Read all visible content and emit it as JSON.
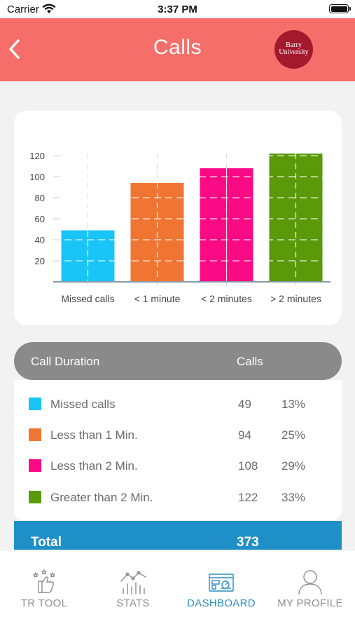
{
  "status_bar": {
    "carrier": "Carrier",
    "time": "3:37 PM"
  },
  "header": {
    "title": "Calls",
    "logo_text": [
      "Barry",
      "University"
    ],
    "background": "#f56e69"
  },
  "chart_data": {
    "type": "bar",
    "categories": [
      "Missed calls",
      "< 1 minute",
      "< 2 minutes",
      "> 2 minutes"
    ],
    "values": [
      49,
      94,
      108,
      122
    ],
    "colors": [
      "#19c4f6",
      "#f07532",
      "#fb0a86",
      "#5a9a0a"
    ],
    "yticks": [
      20,
      40,
      60,
      80,
      100,
      120
    ],
    "ylim": [
      0,
      122
    ],
    "grid": true
  },
  "table": {
    "header": {
      "duration": "Call Duration",
      "calls": "Calls"
    },
    "rows": [
      {
        "label": "Missed calls",
        "count": "49",
        "pct": "13%",
        "color": "#19c4f6"
      },
      {
        "label": "Less than 1 Min.",
        "count": "94",
        "pct": "25%",
        "color": "#f07532"
      },
      {
        "label": "Less than 2 Min.",
        "count": "108",
        "pct": "29%",
        "color": "#fb0a86"
      },
      {
        "label": "Greater than 2 Min.",
        "count": "122",
        "pct": "33%",
        "color": "#5a9a0a"
      }
    ],
    "total": {
      "label": "Total",
      "value": "373"
    }
  },
  "tabs": [
    {
      "label": "TR TOOL",
      "icon": "thumbs-up-stars-icon",
      "active": false
    },
    {
      "label": "STATS",
      "icon": "stats-chart-icon",
      "active": false
    },
    {
      "label": "DASHBOARD",
      "icon": "dashboard-icon",
      "active": true
    },
    {
      "label": "MY PROFILE",
      "icon": "user-profile-icon",
      "active": false
    }
  ]
}
